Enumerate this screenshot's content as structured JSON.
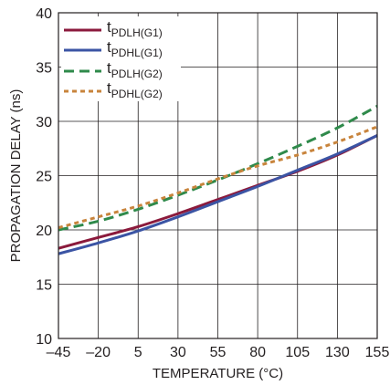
{
  "chart_data": {
    "type": "line",
    "title": "",
    "xlabel": "TEMPERATURE (°C)",
    "ylabel": "PROPAGATION DELAY (ns)",
    "xlim": [
      -45,
      155
    ],
    "ylim": [
      10,
      40
    ],
    "x_ticks": [
      -45,
      -20,
      5,
      30,
      55,
      80,
      105,
      130,
      155
    ],
    "x_tick_labels": [
      "–45",
      "–20",
      "5",
      "30",
      "55",
      "80",
      "105",
      "130",
      "155"
    ],
    "y_ticks": [
      10,
      15,
      20,
      25,
      30,
      35,
      40
    ],
    "y_tick_labels": [
      "10",
      "15",
      "20",
      "25",
      "30",
      "35",
      "40"
    ],
    "grid": true,
    "legend_position": "top-left",
    "series": [
      {
        "name_main": "t",
        "name_sub": "PDLH(G1)",
        "color": "#8b1a3c",
        "style": "solid",
        "x": [
          -45,
          -20,
          5,
          30,
          55,
          80,
          105,
          130,
          155
        ],
        "y": [
          18.3,
          19.3,
          20.3,
          21.5,
          22.8,
          24.1,
          25.4,
          26.9,
          28.7
        ]
      },
      {
        "name_main": "t",
        "name_sub": "PDHL(G1)",
        "color": "#3b54a4",
        "style": "solid",
        "x": [
          -45,
          -20,
          5,
          30,
          55,
          80,
          105,
          130,
          155
        ],
        "y": [
          17.8,
          18.8,
          19.9,
          21.2,
          22.6,
          24.0,
          25.5,
          27.0,
          28.7
        ]
      },
      {
        "name_main": "t",
        "name_sub": "PDLH(G2)",
        "color": "#2f8a4b",
        "style": "dashed",
        "x": [
          -45,
          -20,
          5,
          30,
          55,
          80,
          105,
          130,
          155
        ],
        "y": [
          20.0,
          20.8,
          21.9,
          23.2,
          24.6,
          26.1,
          27.7,
          29.4,
          31.4
        ]
      },
      {
        "name_main": "t",
        "name_sub": "PDHL(G2)",
        "color": "#c8843c",
        "style": "dotted",
        "x": [
          -45,
          -20,
          5,
          30,
          55,
          80,
          105,
          130,
          155
        ],
        "y": [
          20.2,
          21.2,
          22.2,
          23.4,
          24.7,
          25.9,
          26.9,
          28.1,
          29.5
        ]
      }
    ]
  }
}
